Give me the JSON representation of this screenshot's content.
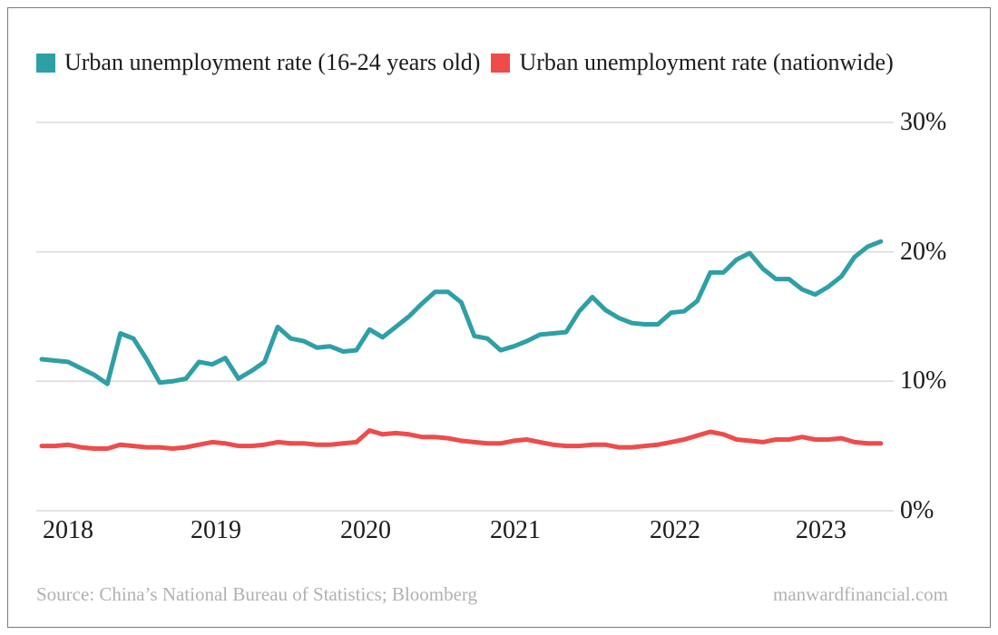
{
  "legend": {
    "items": [
      {
        "label": "Urban unemployment rate (16-24 years old)",
        "color": "#2f9fa6"
      },
      {
        "label": "Urban unemployment rate (nationwide)",
        "color": "#ef4b4b"
      }
    ]
  },
  "footer": {
    "source": "Source: China’s National Bureau of Statistics; Bloomberg",
    "watermark": "manwardfinancial.com"
  },
  "colors": {
    "youth_line": "#2f9fa6",
    "nationwide_line": "#ef4b4b",
    "gridline": "#d9d9d9",
    "text": "#1b1b1b",
    "muted_text": "#b1b1b1",
    "card_border": "#7a7a7a"
  },
  "chart_data": {
    "type": "line",
    "title": "",
    "xlabel": "",
    "ylabel": "",
    "ylim": [
      0,
      30
    ],
    "grid": "horizontal",
    "legend_position": "top",
    "y_ticks": [
      {
        "value": 30,
        "label": "30%"
      },
      {
        "value": 20,
        "label": "20%"
      },
      {
        "value": 10,
        "label": "10%"
      },
      {
        "value": 0,
        "label": "0%"
      }
    ],
    "x_tick_labels": [
      "2018",
      "2019",
      "2020",
      "2021",
      "2022",
      "2023"
    ],
    "x": [
      "2018-01",
      "2018-02",
      "2018-03",
      "2018-04",
      "2018-05",
      "2018-06",
      "2018-07",
      "2018-08",
      "2018-09",
      "2018-10",
      "2018-11",
      "2018-12",
      "2019-01",
      "2019-02",
      "2019-03",
      "2019-04",
      "2019-05",
      "2019-06",
      "2019-07",
      "2019-08",
      "2019-09",
      "2019-10",
      "2019-11",
      "2019-12",
      "2020-01",
      "2020-02",
      "2020-03",
      "2020-04",
      "2020-05",
      "2020-06",
      "2020-07",
      "2020-08",
      "2020-09",
      "2020-10",
      "2020-11",
      "2020-12",
      "2021-01",
      "2021-02",
      "2021-03",
      "2021-04",
      "2021-05",
      "2021-06",
      "2021-07",
      "2021-08",
      "2021-09",
      "2021-10",
      "2021-11",
      "2021-12",
      "2022-01",
      "2022-02",
      "2022-03",
      "2022-04",
      "2022-05",
      "2022-06",
      "2022-07",
      "2022-08",
      "2022-09",
      "2022-10",
      "2022-11",
      "2022-12",
      "2023-01",
      "2023-02",
      "2023-03",
      "2023-04",
      "2023-05"
    ],
    "series": [
      {
        "name": "Urban unemployment rate (16-24 years old)",
        "color": "#2f9fa6",
        "unit": "%",
        "values": [
          11.7,
          11.6,
          11.5,
          11.0,
          10.5,
          9.8,
          13.7,
          13.3,
          11.7,
          9.9,
          10.0,
          10.2,
          11.5,
          11.3,
          11.8,
          10.2,
          10.8,
          11.5,
          14.2,
          13.3,
          13.1,
          12.6,
          12.7,
          12.3,
          12.4,
          14.0,
          13.4,
          14.2,
          15.0,
          16.0,
          16.9,
          16.9,
          16.1,
          13.5,
          13.3,
          12.4,
          12.7,
          13.1,
          13.6,
          13.7,
          13.8,
          15.4,
          16.5,
          15.5,
          14.9,
          14.5,
          14.4,
          14.4,
          15.3,
          15.4,
          16.2,
          18.4,
          18.4,
          19.4,
          19.9,
          18.7,
          17.9,
          17.9,
          17.1,
          16.7,
          17.3,
          18.1,
          19.6,
          20.4,
          20.8
        ]
      },
      {
        "name": "Urban unemployment rate (nationwide)",
        "color": "#ef4b4b",
        "unit": "%",
        "values": [
          5.0,
          5.0,
          5.1,
          4.9,
          4.8,
          4.8,
          5.1,
          5.0,
          4.9,
          4.9,
          4.8,
          4.9,
          5.1,
          5.3,
          5.2,
          5.0,
          5.0,
          5.1,
          5.3,
          5.2,
          5.2,
          5.1,
          5.1,
          5.2,
          5.3,
          6.2,
          5.9,
          6.0,
          5.9,
          5.7,
          5.7,
          5.6,
          5.4,
          5.3,
          5.2,
          5.2,
          5.4,
          5.5,
          5.3,
          5.1,
          5.0,
          5.0,
          5.1,
          5.1,
          4.9,
          4.9,
          5.0,
          5.1,
          5.3,
          5.5,
          5.8,
          6.1,
          5.9,
          5.5,
          5.4,
          5.3,
          5.5,
          5.5,
          5.7,
          5.5,
          5.5,
          5.6,
          5.3,
          5.2,
          5.2
        ]
      }
    ]
  }
}
